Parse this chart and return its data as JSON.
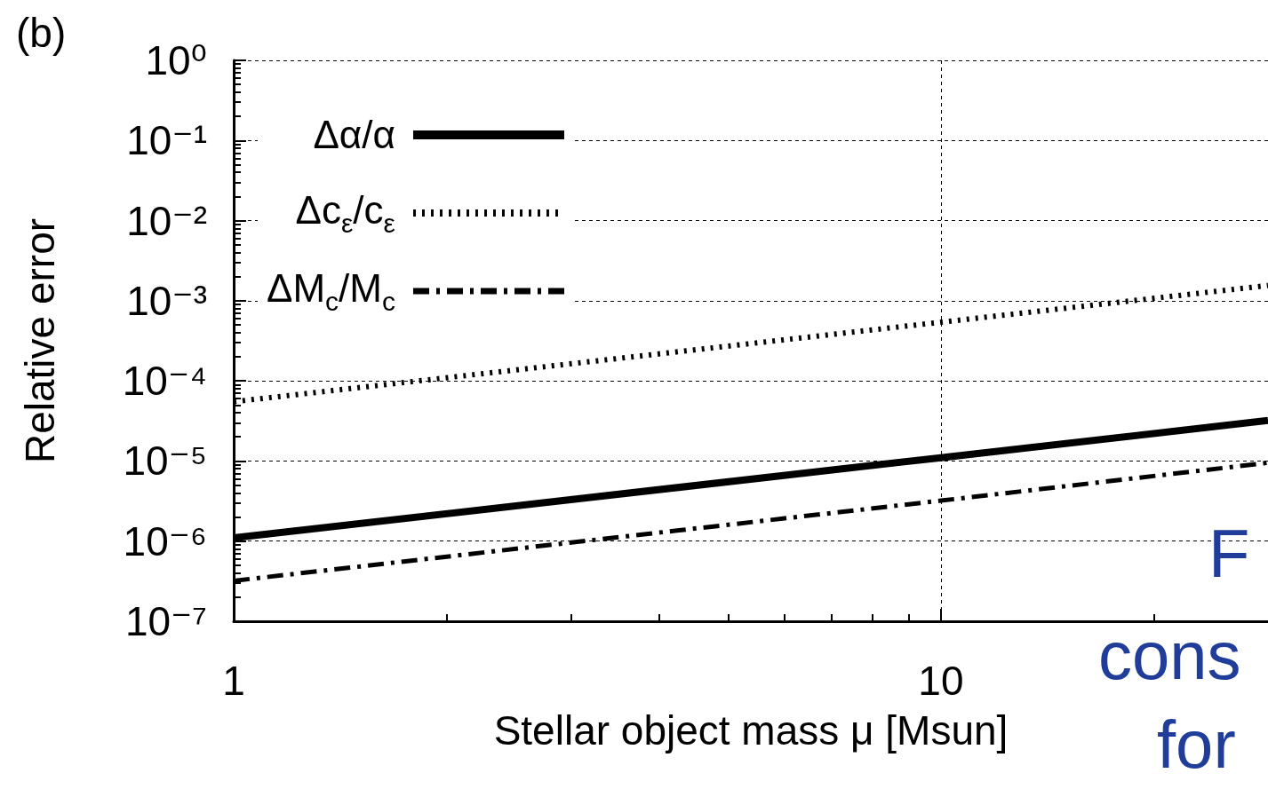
{
  "chart_data": {
    "type": "line",
    "xlabel": "Stellar object mass μ [Msun]",
    "ylabel": "Relative error",
    "log": "xy",
    "grid": true,
    "legend": "top left",
    "marker": "none",
    "xlim": [
      1,
      29
    ],
    "xticks": [
      1,
      10
    ],
    "ylim": [
      1e-07,
      1
    ],
    "yticks": [
      {
        "value": 1e-07,
        "label": "10⁻⁷"
      },
      {
        "value": 1e-06,
        "label": "10⁻⁶"
      },
      {
        "value": 1e-05,
        "label": "10⁻⁵"
      },
      {
        "value": 0.0001,
        "label": "10⁻⁴"
      },
      {
        "value": 0.001,
        "label": "10⁻³"
      },
      {
        "value": 0.01,
        "label": "10⁻²"
      },
      {
        "value": 0.1,
        "label": "10⁻¹"
      },
      {
        "value": 1,
        "label": "10⁰"
      }
    ],
    "annotations": [
      "(b)",
      "F",
      "cons",
      "for"
    ],
    "series": [
      {
        "name": "Δα/α",
        "color": "#000000",
        "line_style": "solid",
        "x": [
          1,
          10,
          29
        ],
        "values": [
          1.1e-06,
          1.1e-05,
          3.2e-05
        ]
      },
      {
        "name": "Δc$_{ε}$/c$_{ε}$",
        "color": "#000000",
        "line_style": "dotted",
        "x": [
          1,
          10,
          29
        ],
        "values": [
          5.5e-05,
          0.00054,
          0.00155
        ]
      },
      {
        "name": "ΔM$_{c}$/M$_{c}$",
        "color": "#000000",
        "line_style": "dashdot",
        "x": [
          1,
          10,
          29
        ],
        "values": [
          3.2e-07,
          3.2e-06,
          9.5e-06
        ]
      }
    ]
  }
}
